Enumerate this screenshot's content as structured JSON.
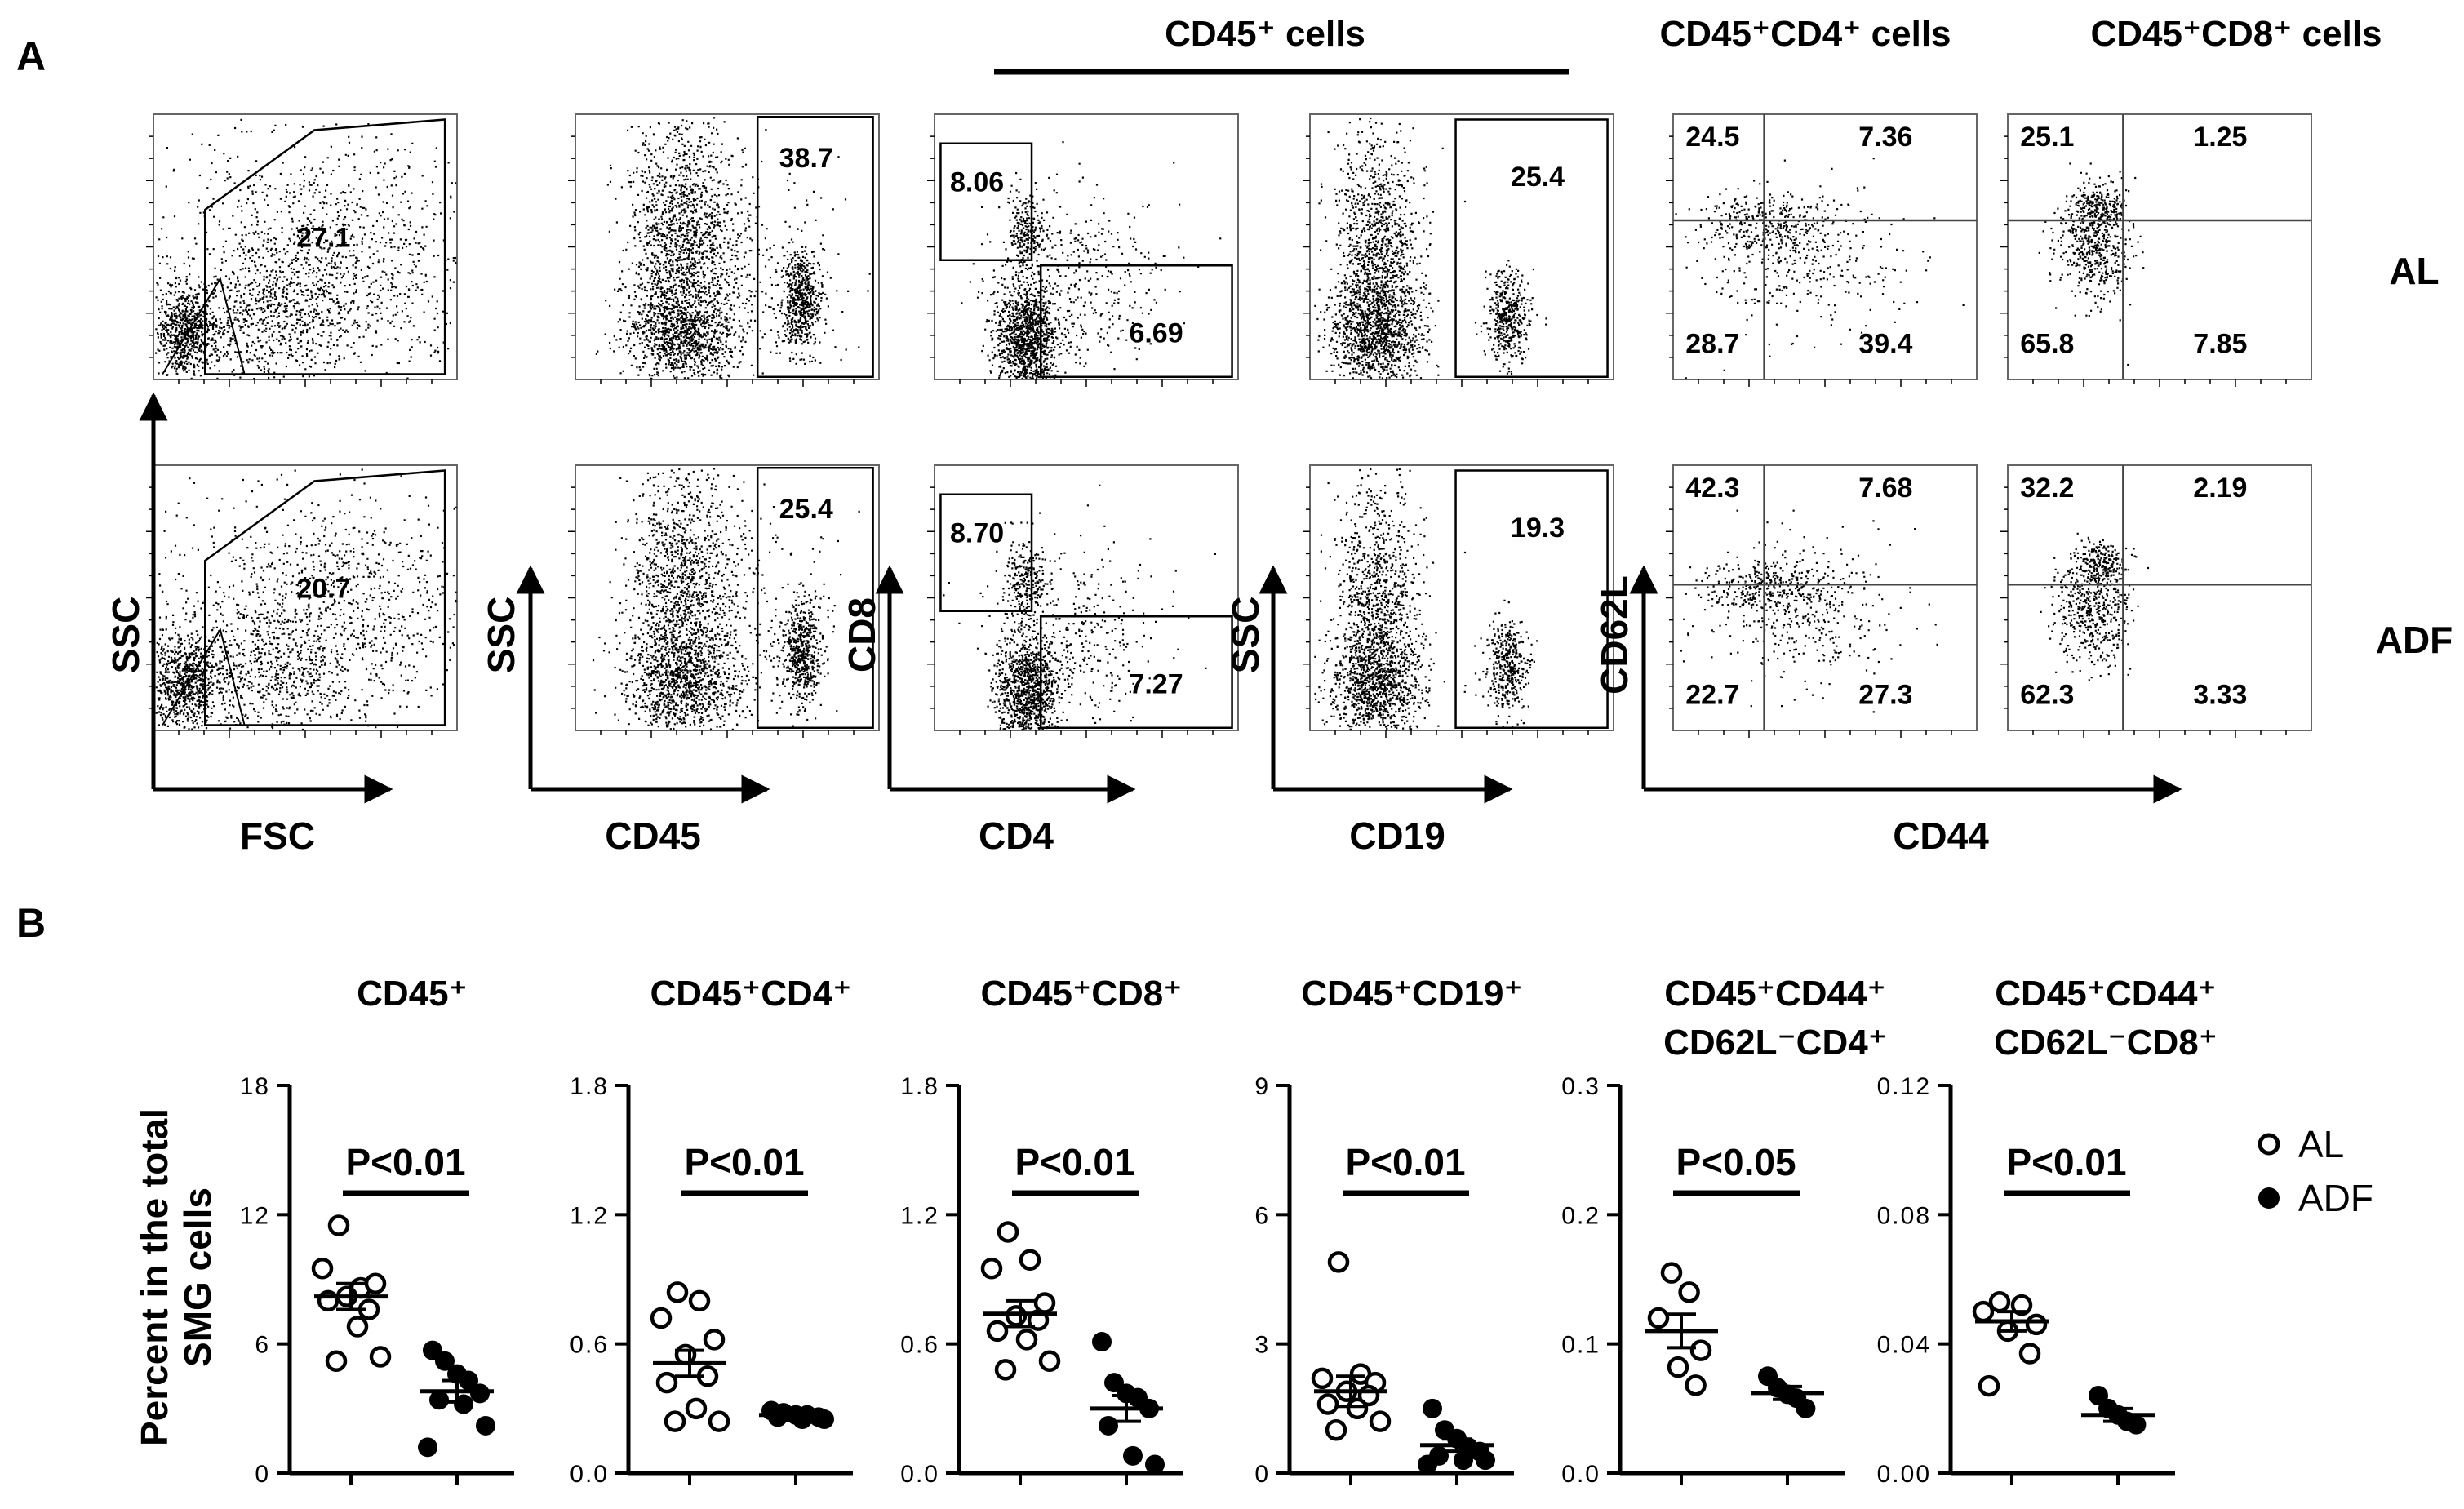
{
  "panel_labels": {
    "a": "A",
    "b": "B"
  },
  "panel_a": {
    "group_header": "CD45⁺ cells",
    "col_headers": [
      "CD45⁺CD4⁺ cells",
      "CD45⁺CD8⁺ cells"
    ],
    "row_labels": [
      "AL",
      "ADF"
    ],
    "axes": [
      {
        "x": "FSC",
        "y": "SSC"
      },
      {
        "x": "CD45",
        "y": "SSC"
      },
      {
        "x": "CD4",
        "y": "CD8"
      },
      {
        "x": "CD19",
        "y": "SSC"
      },
      {
        "x": "CD44",
        "y": "CD62L"
      }
    ],
    "gates": {
      "AL": {
        "fsc_ssc": "27.1",
        "cd45": "38.7",
        "cd8": "8.06",
        "cd4": "6.69",
        "cd19": "25.4",
        "cd4_quadrants": [
          "24.5",
          "7.36",
          "28.7",
          "39.4"
        ],
        "cd8_quadrants": [
          "25.1",
          "1.25",
          "65.8",
          "7.85"
        ]
      },
      "ADF": {
        "fsc_ssc": "20.7",
        "cd45": "25.4",
        "cd8": "8.70",
        "cd4": "7.27",
        "cd19": "19.3",
        "cd4_quadrants": [
          "42.3",
          "7.68",
          "22.7",
          "27.3"
        ],
        "cd8_quadrants": [
          "32.2",
          "2.19",
          "62.3",
          "3.33"
        ]
      }
    }
  },
  "panel_b": {
    "ylabel_line1": "Percent in the total",
    "ylabel_line2": "SMG cells",
    "legend": [
      {
        "label": "AL",
        "marker": "open-circle"
      },
      {
        "label": "ADF",
        "marker": "filled-circle"
      }
    ],
    "colors": {
      "ink": "#000000",
      "background": "#ffffff"
    }
  },
  "chart_data": [
    {
      "type": "scatter",
      "title": "CD45⁺",
      "ylim": [
        0,
        18
      ],
      "yticks": [
        "0",
        "6",
        "12",
        "18"
      ],
      "pvalue": "P<0.01",
      "series": [
        {
          "name": "AL",
          "values": [
            11.5,
            8.6,
            9.5,
            8.8,
            8.2,
            7.6,
            8.0,
            6.8,
            5.4,
            5.2
          ],
          "mean": 8.2,
          "sem": 0.6
        },
        {
          "name": "ADF",
          "values": [
            5.7,
            5.2,
            4.6,
            4.3,
            3.7,
            3.4,
            3.2,
            2.2,
            1.2
          ],
          "mean": 3.8,
          "sem": 0.5
        }
      ]
    },
    {
      "type": "scatter",
      "title": "CD45⁺CD4⁺",
      "ylim": [
        0,
        1.8
      ],
      "yticks": [
        "0.0",
        "0.6",
        "1.2",
        "1.8"
      ],
      "pvalue": "P<0.01",
      "series": [
        {
          "name": "AL",
          "values": [
            0.84,
            0.8,
            0.72,
            0.62,
            0.55,
            0.45,
            0.42,
            0.3,
            0.24,
            0.24
          ],
          "mean": 0.51,
          "sem": 0.06
        },
        {
          "name": "ADF",
          "values": [
            0.29,
            0.28,
            0.27,
            0.27,
            0.26,
            0.26,
            0.25,
            0.25
          ],
          "mean": 0.27,
          "sem": 0.01
        }
      ]
    },
    {
      "type": "scatter",
      "title": "CD45⁺CD8⁺",
      "ylim": [
        0,
        1.8
      ],
      "yticks": [
        "0.0",
        "0.6",
        "1.2",
        "1.8"
      ],
      "pvalue": "P<0.01",
      "series": [
        {
          "name": "AL",
          "values": [
            1.12,
            0.99,
            0.95,
            0.79,
            0.73,
            0.71,
            0.66,
            0.62,
            0.52,
            0.48
          ],
          "mean": 0.74,
          "sem": 0.06
        },
        {
          "name": "ADF",
          "values": [
            0.61,
            0.42,
            0.37,
            0.35,
            0.3,
            0.22,
            0.08,
            0.04
          ],
          "mean": 0.3,
          "sem": 0.06
        }
      ]
    },
    {
      "type": "scatter",
      "title": "CD45⁺CD19⁺",
      "ylim": [
        0,
        9
      ],
      "yticks": [
        "0",
        "3",
        "6",
        "9"
      ],
      "pvalue": "P<0.01",
      "series": [
        {
          "name": "AL",
          "values": [
            4.9,
            2.3,
            2.2,
            2.1,
            1.9,
            1.8,
            1.6,
            1.5,
            1.2,
            1.0
          ],
          "mean": 1.9,
          "sem": 0.35
        },
        {
          "name": "ADF",
          "values": [
            1.5,
            1.0,
            0.8,
            0.6,
            0.5,
            0.4,
            0.3,
            0.3,
            0.2
          ],
          "mean": 0.65,
          "sem": 0.14
        }
      ]
    },
    {
      "type": "scatter",
      "title": "CD45⁺CD44⁺",
      "title_line2": "CD62L⁻CD4⁺",
      "ylim": [
        0,
        0.3
      ],
      "yticks": [
        "0.0",
        "0.1",
        "0.2",
        "0.3"
      ],
      "pvalue": "P<0.05",
      "series": [
        {
          "name": "AL",
          "values": [
            0.155,
            0.14,
            0.12,
            0.095,
            0.082,
            0.068
          ],
          "mean": 0.11,
          "sem": 0.013
        },
        {
          "name": "ADF",
          "values": [
            0.075,
            0.066,
            0.061,
            0.058,
            0.05
          ],
          "mean": 0.062,
          "sem": 0.005
        }
      ]
    },
    {
      "type": "scatter",
      "title": "CD45⁺CD44⁺",
      "title_line2": "CD62L⁻CD8⁺",
      "ylim": [
        0,
        0.12
      ],
      "yticks": [
        "0.00",
        "0.04",
        "0.08",
        "0.12"
      ],
      "pvalue": "P<0.01",
      "series": [
        {
          "name": "AL",
          "values": [
            0.053,
            0.052,
            0.05,
            0.046,
            0.044,
            0.037,
            0.027
          ],
          "mean": 0.047,
          "sem": 0.003
        },
        {
          "name": "ADF",
          "values": [
            0.024,
            0.02,
            0.018,
            0.016,
            0.015
          ],
          "mean": 0.018,
          "sem": 0.002
        }
      ]
    }
  ]
}
